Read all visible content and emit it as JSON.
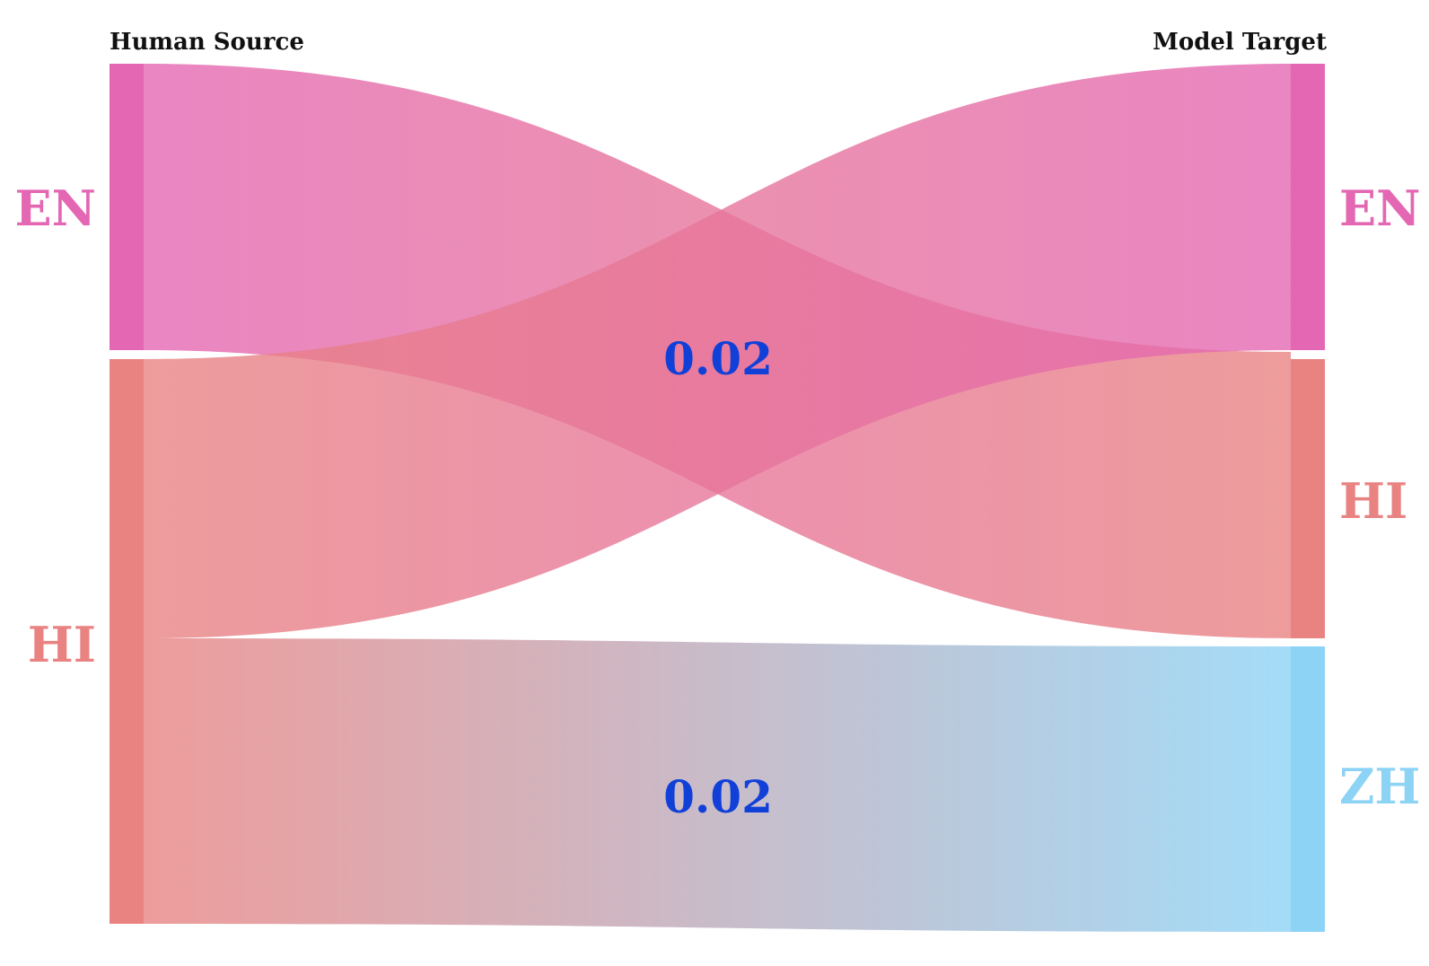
{
  "titles": {
    "left": "Human Source",
    "right": "Model Target"
  },
  "nodes": {
    "left": [
      {
        "id": "EN",
        "label": "EN",
        "color": "#e467b3"
      },
      {
        "id": "HI",
        "label": "HI",
        "color": "#e98382"
      }
    ],
    "right": [
      {
        "id": "EN",
        "label": "EN",
        "color": "#e467b3"
      },
      {
        "id": "HI",
        "label": "HI",
        "color": "#e98382"
      },
      {
        "id": "ZH",
        "label": "ZH",
        "color": "#8dd3f6"
      }
    ]
  },
  "flows": [
    {
      "from": "EN",
      "to": "HI",
      "value": 1,
      "label": ""
    },
    {
      "from": "HI",
      "to": "EN",
      "value": 1,
      "label": ""
    },
    {
      "from": "HI",
      "to": "ZH",
      "value": 1,
      "label": ""
    }
  ],
  "flow_value_labels": [
    {
      "text": "0.02",
      "position": "crossing"
    },
    {
      "text": "0.02",
      "position": "lower-flow"
    }
  ],
  "label_color": "#1040d8"
}
